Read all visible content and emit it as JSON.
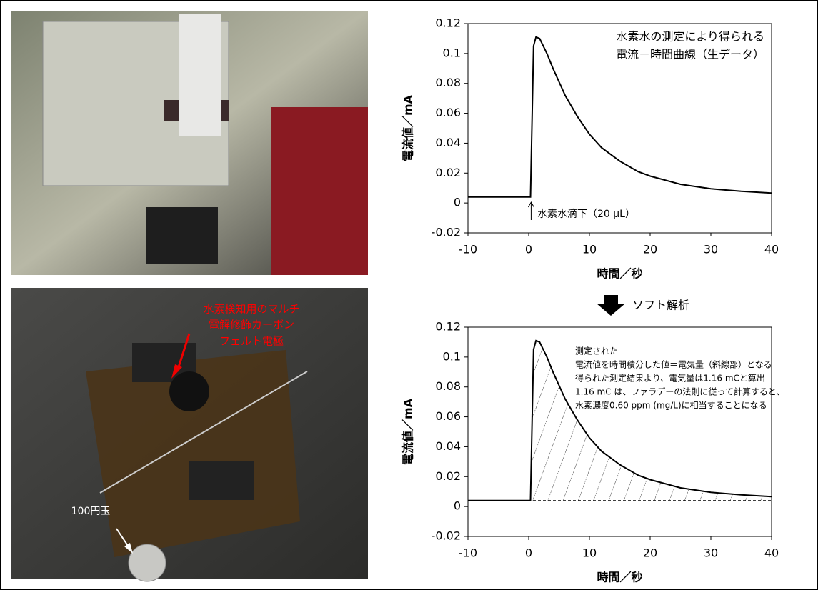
{
  "chart_data": [
    {
      "type": "line",
      "annotations": [
        "水素水の測定により得られる",
        "電流－時間曲線（生データ）",
        "水素水滴下（20 μL）"
      ],
      "xlabel": "時間／秒",
      "ylabel": "電流値／mA",
      "x": [
        -10,
        0.3,
        0.8,
        1.2,
        1.8,
        3,
        4,
        5,
        6,
        8,
        10,
        12,
        15,
        18,
        20,
        25,
        30,
        35,
        40
      ],
      "series": [
        {
          "color": "#000000",
          "values": [
            0.004,
            0.004,
            0.105,
            0.111,
            0.11,
            0.1,
            0.09,
            0.081,
            0.072,
            0.058,
            0.046,
            0.037,
            0.028,
            0.021,
            0.018,
            0.0125,
            0.0095,
            0.0078,
            0.0066
          ]
        }
      ],
      "xlim": [
        -10,
        40
      ],
      "ylim": [
        -0.02,
        0.12
      ],
      "xticks": [
        -10,
        0,
        10,
        20,
        30,
        40
      ],
      "yticks": [
        0.12,
        0.1,
        0.08,
        0.06,
        0.04,
        0.02,
        0,
        -0.02
      ]
    },
    {
      "type": "line",
      "annotations": [
        "測定された",
        "電流値を時間積分した値＝電気量（斜線部）となる",
        "得られた測定結果より、電気量は1.16 mCと算出",
        "1.16 mC は、ファラデーの法則に従って計算すると、",
        "水素濃度0.60 ppm (mg/L)に相当することになる"
      ],
      "xlabel": "時間／秒",
      "ylabel": "電流値／mA",
      "x": [
        -10,
        0.3,
        0.8,
        1.2,
        1.8,
        3,
        4,
        5,
        6,
        8,
        10,
        12,
        15,
        18,
        20,
        25,
        30,
        35,
        40
      ],
      "series": [
        {
          "color": "#000000",
          "values": [
            0.004,
            0.004,
            0.105,
            0.111,
            0.11,
            0.1,
            0.09,
            0.081,
            0.072,
            0.058,
            0.046,
            0.037,
            0.028,
            0.021,
            0.018,
            0.0125,
            0.0095,
            0.0078,
            0.0066
          ]
        }
      ],
      "baseline": 0.004,
      "hatch": true,
      "xlim": [
        -10,
        40
      ],
      "ylim": [
        -0.02,
        0.12
      ],
      "xticks": [
        -10,
        0,
        10,
        20,
        30,
        40
      ],
      "yticks": [
        0.12,
        0.1,
        0.08,
        0.06,
        0.04,
        0.02,
        0,
        -0.02
      ]
    }
  ],
  "analysis_label": "ソフト解析",
  "photo_labels": {
    "electrode": [
      "水素検知用のマルチ",
      "電解修飾カーボン",
      "フェルト電極"
    ],
    "coin": "100円玉"
  }
}
